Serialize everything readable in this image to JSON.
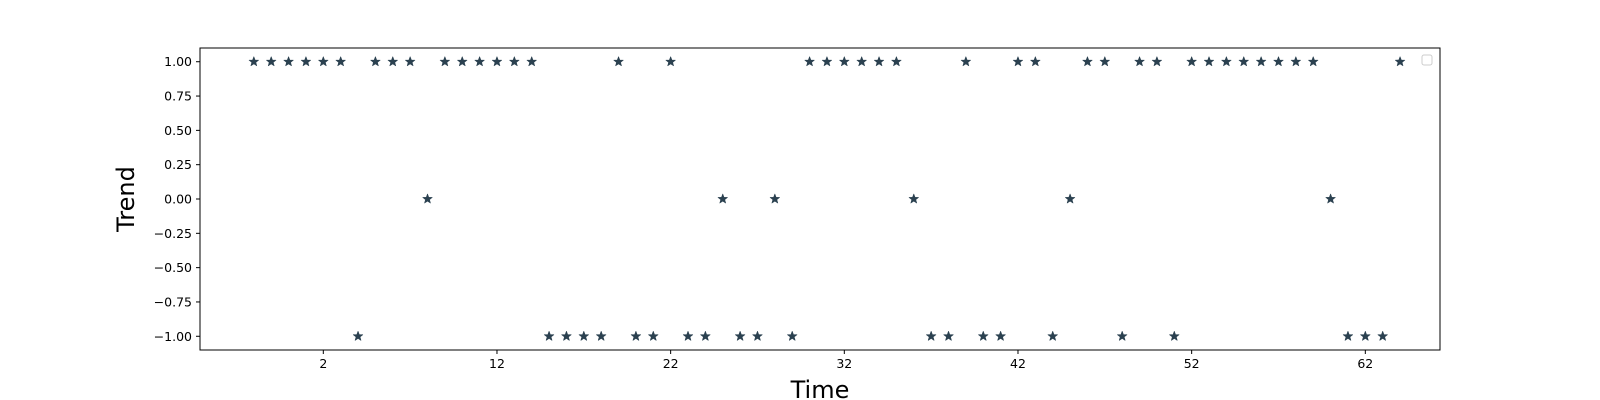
{
  "chart_data": {
    "type": "scatter",
    "title": "",
    "xlabel": "Time",
    "ylabel": "Trend",
    "xlim": [
      -5.1,
      66.3
    ],
    "ylim": [
      -1.1,
      1.1
    ],
    "xticks": [
      2,
      12,
      22,
      32,
      42,
      52,
      62
    ],
    "yticks": [
      -1.0,
      -0.75,
      -0.5,
      -0.25,
      0.0,
      0.25,
      0.5,
      0.75,
      1.0
    ],
    "ytick_labels": [
      "−1.00",
      "−0.75",
      "−0.50",
      "−0.25",
      "0.00",
      "0.25",
      "0.50",
      "0.75",
      "1.00"
    ],
    "grid": false,
    "legend": {
      "placement": "top-right",
      "entries": []
    },
    "marker": "star",
    "color": "#2b4150",
    "x": [
      -2,
      -1,
      0,
      1,
      2,
      3,
      4,
      5,
      6,
      7,
      8,
      9,
      10,
      11,
      12,
      13,
      14,
      15,
      16,
      17,
      18,
      19,
      20,
      21,
      22,
      23,
      24,
      25,
      26,
      27,
      28,
      29,
      30,
      31,
      32,
      33,
      34,
      35,
      36,
      37,
      38,
      39,
      40,
      41,
      42,
      43,
      44,
      45,
      46,
      47,
      48,
      49,
      50,
      51,
      52,
      53,
      54,
      55,
      56,
      57,
      58,
      59,
      60,
      61,
      62,
      63,
      64
    ],
    "y": [
      1,
      1,
      1,
      1,
      1,
      1,
      -1,
      1,
      1,
      1,
      0,
      1,
      1,
      1,
      1,
      1,
      1,
      -1,
      -1,
      -1,
      -1,
      1,
      -1,
      -1,
      1,
      -1,
      -1,
      0,
      -1,
      -1,
      0,
      -1,
      1,
      1,
      1,
      1,
      1,
      1,
      0,
      -1,
      -1,
      1,
      -1,
      -1,
      1,
      1,
      -1,
      0,
      1,
      1,
      -1,
      1,
      1,
      -1,
      1,
      1,
      1,
      1,
      1,
      1,
      1,
      1,
      0,
      -1,
      -1,
      -1,
      1
    ]
  }
}
